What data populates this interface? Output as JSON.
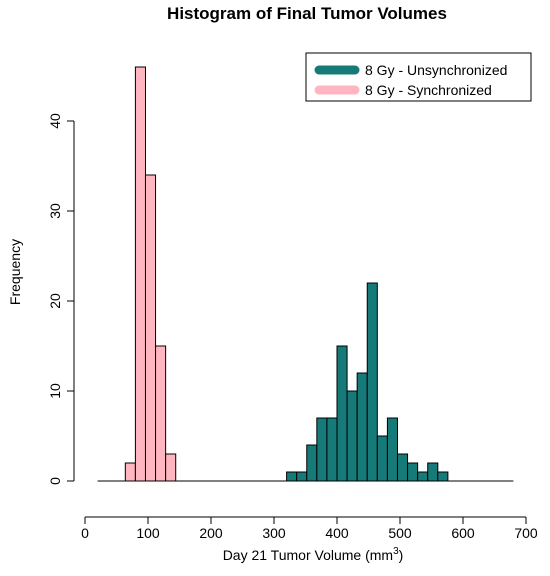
{
  "chart_data": {
    "type": "bar",
    "title": "Histogram of Final Tumor Volumes",
    "xlabel": "Day 21 Tumor Volume (mm",
    "xlabel_sup": "3",
    "xlabel_end": ")",
    "ylabel": "Frequency",
    "xlim": [
      0,
      700
    ],
    "ylim": [
      0,
      48
    ],
    "x_ticks": [
      "0",
      "100",
      "200",
      "300",
      "400",
      "500",
      "600",
      "700"
    ],
    "y_ticks": [
      "0",
      "10",
      "20",
      "30",
      "40"
    ],
    "bin_width": 16,
    "legend_position": "top-right",
    "grid": false,
    "series": [
      {
        "name": "8 Gy - Unsynchronized",
        "color": "#167A78",
        "bins_start": 320,
        "values": [
          1,
          1,
          4,
          7,
          7,
          15,
          10,
          12,
          22,
          5,
          7,
          3,
          2,
          1,
          2,
          1
        ]
      },
      {
        "name": "8 Gy - Synchronized",
        "color": "#FFB6C1",
        "bins_start": 64,
        "values": [
          2,
          46,
          34,
          15,
          3
        ]
      }
    ],
    "baseline_range": [
      20,
      680
    ]
  }
}
